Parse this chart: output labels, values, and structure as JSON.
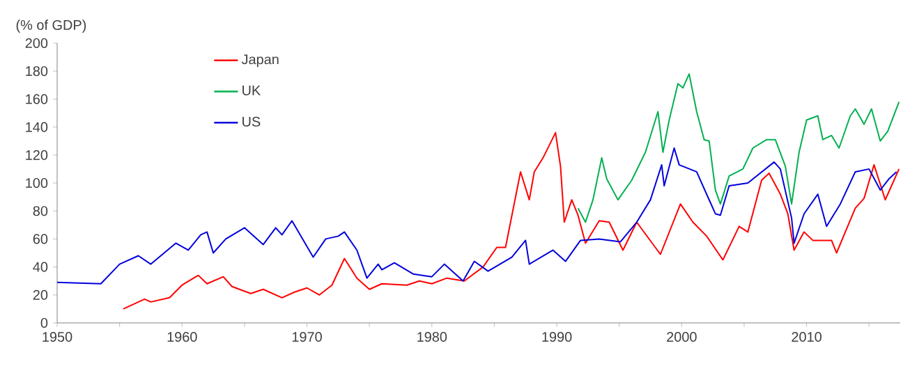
{
  "chart_data": {
    "type": "line",
    "ylabel": "(% of GDP)",
    "xlim": [
      1950,
      2017.5
    ],
    "xticks": [
      1950,
      {
        "value": 1955,
        "label": null
      },
      1960,
      {
        "value": 1965,
        "label": null
      },
      1970,
      {
        "value": 1975,
        "label": null
      },
      1980,
      {
        "value": 1985,
        "label": null
      },
      1990,
      {
        "value": 1995,
        "label": null
      },
      2000,
      {
        "value": 2005,
        "label": null
      },
      2010,
      {
        "value": 2015,
        "label": null
      }
    ],
    "ylim": [
      0,
      200
    ],
    "yticks": [
      0,
      20,
      40,
      60,
      80,
      100,
      120,
      140,
      160,
      180,
      200
    ],
    "grid": false,
    "legend": "top left",
    "marker": "none",
    "line_style": "solid",
    "series": [
      {
        "name": "Japan",
        "color": "#ff0000",
        "x": [
          1955.3,
          1957,
          1957.5,
          1959,
          1960,
          1961.3,
          1962,
          1963.3,
          1964,
          1965.5,
          1966.5,
          1968,
          1969,
          1970,
          1971,
          1972,
          1973,
          1974,
          1975,
          1976,
          1978,
          1979,
          1980,
          1981.2,
          1982.6,
          1984.1,
          1985.2,
          1985.9,
          1987.1,
          1987.8,
          1988.2,
          1988.9,
          1989.9,
          1990.3,
          1990.6,
          1991.2,
          1991.7,
          1992.3,
          1993.4,
          1994.2,
          1995.3,
          1996.4,
          1998.3,
          1999.9,
          2000.9,
          2002,
          2003.3,
          2004.6,
          2005.3,
          2006.4,
          2007,
          2007.9,
          2008.5,
          2009,
          2009.8,
          2010.5,
          2012,
          2012.4,
          2013.1,
          2013.9,
          2014.6,
          2015.4,
          2016.3,
          2016.8,
          2017.4
        ],
        "values": [
          10,
          17,
          15,
          18,
          27,
          34,
          28,
          33,
          26,
          21,
          24,
          18,
          22,
          25,
          20,
          27,
          46,
          32,
          24,
          28,
          27,
          30,
          28,
          32,
          30,
          40,
          54,
          54,
          108,
          88,
          108,
          118,
          136,
          112,
          72,
          88,
          77,
          57,
          73,
          72,
          52,
          72,
          49,
          85,
          72,
          62,
          45,
          69,
          65,
          102,
          107,
          92,
          78,
          52,
          65,
          59,
          59,
          50,
          65,
          82,
          89,
          113,
          88,
          98,
          110
        ]
      },
      {
        "name": "UK",
        "color": "#00b050",
        "x": [
          1991.7,
          1992.3,
          1992.9,
          1993.6,
          1994,
          1994.9,
          1996,
          1997.1,
          1998.1,
          1998.5,
          1999,
          1999.7,
          2000.1,
          2000.6,
          2001.2,
          2001.8,
          2002.2,
          2002.7,
          2003.1,
          2003.8,
          2004.9,
          2005.7,
          2006.8,
          2007.5,
          2008.3,
          2008.8,
          2009.4,
          2010,
          2010.9,
          2011.3,
          2012,
          2012.6,
          2013.5,
          2013.9,
          2014.6,
          2015.2,
          2015.9,
          2016.5,
          2017.4
        ],
        "values": [
          82,
          72,
          88,
          118,
          103,
          88,
          102,
          122,
          151,
          122,
          145,
          171,
          168,
          178,
          151,
          131,
          130,
          95,
          85,
          105,
          110,
          125,
          131,
          131,
          112,
          85,
          122,
          145,
          148,
          131,
          134,
          125,
          148,
          153,
          142,
          153,
          130,
          137,
          158
        ]
      },
      {
        "name": "US",
        "color": "#0000dd",
        "x": [
          1950,
          1953.5,
          1955,
          1956.5,
          1957.5,
          1959.5,
          1960.5,
          1961.5,
          1962,
          1962.5,
          1963.5,
          1965,
          1966.5,
          1967.5,
          1968,
          1968.8,
          1970.5,
          1971.5,
          1972.5,
          1973,
          1974,
          1974.8,
          1975.7,
          1976,
          1977,
          1978.5,
          1980,
          1981,
          1982.5,
          1983.4,
          1984.5,
          1986.4,
          1987.5,
          1987.8,
          1989.7,
          1990.7,
          1991.9,
          1993.4,
          1995.1,
          1996.4,
          1997.5,
          1998.4,
          1998.6,
          1999.4,
          1999.8,
          2001.2,
          2002.7,
          2003.1,
          2003.8,
          2005.3,
          2007.4,
          2007.9,
          2008.8,
          2009,
          2009.8,
          2010.9,
          2011.6,
          2012.7,
          2013.9,
          2015,
          2015.9,
          2016.6,
          2017.2
        ],
        "values": [
          29,
          28,
          42,
          48,
          42,
          57,
          52,
          63,
          65,
          50,
          60,
          68,
          56,
          68,
          63,
          73,
          47,
          60,
          62,
          65,
          52,
          32,
          42,
          38,
          43,
          35,
          33,
          42,
          30,
          44,
          37,
          47,
          59,
          42,
          52,
          44,
          59,
          60,
          58,
          72,
          88,
          113,
          98,
          125,
          113,
          108,
          78,
          77,
          98,
          100,
          115,
          110,
          75,
          57,
          78,
          92,
          69,
          85,
          108,
          110,
          95,
          103,
          108
        ]
      }
    ]
  }
}
